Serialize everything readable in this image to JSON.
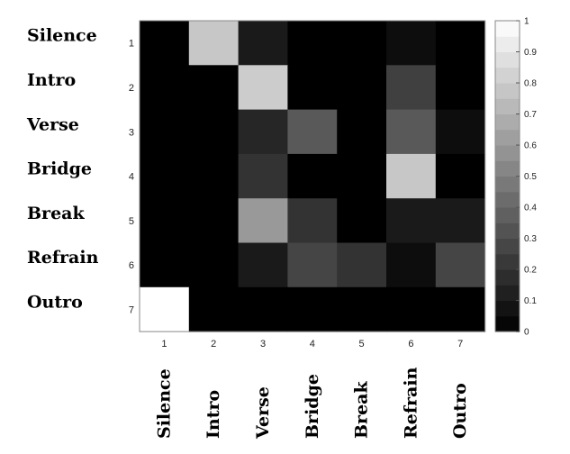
{
  "chart_data": {
    "type": "heatmap",
    "row_ticks": [
      "1",
      "2",
      "3",
      "4",
      "5",
      "6",
      "7"
    ],
    "col_ticks": [
      "1",
      "2",
      "3",
      "4",
      "5",
      "6",
      "7"
    ],
    "row_labels": [
      "Silence",
      "Intro",
      "Verse",
      "Bridge",
      "Break",
      "Refrain",
      "Outro"
    ],
    "col_labels": [
      "Silence",
      "Intro",
      "Verse",
      "Bridge",
      "Break",
      "Refrain",
      "Outro"
    ],
    "values": [
      [
        0.0,
        0.78,
        0.1,
        0.0,
        0.0,
        0.05,
        0.0
      ],
      [
        0.0,
        0.0,
        0.8,
        0.0,
        0.0,
        0.25,
        0.0
      ],
      [
        0.0,
        0.0,
        0.15,
        0.35,
        0.0,
        0.35,
        0.05
      ],
      [
        0.0,
        0.0,
        0.2,
        0.0,
        0.0,
        0.78,
        0.0
      ],
      [
        0.0,
        0.0,
        0.6,
        0.2,
        0.0,
        0.1,
        0.1
      ],
      [
        0.0,
        0.0,
        0.1,
        0.27,
        0.2,
        0.05,
        0.27
      ],
      [
        1.0,
        0.0,
        0.0,
        0.0,
        0.0,
        0.0,
        0.0
      ]
    ],
    "colormap": "gray",
    "clim": [
      0,
      1
    ],
    "colorbar_ticks": [
      "0",
      "0.1",
      "0.2",
      "0.3",
      "0.4",
      "0.5",
      "0.6",
      "0.7",
      "0.8",
      "0.9",
      "1"
    ]
  }
}
